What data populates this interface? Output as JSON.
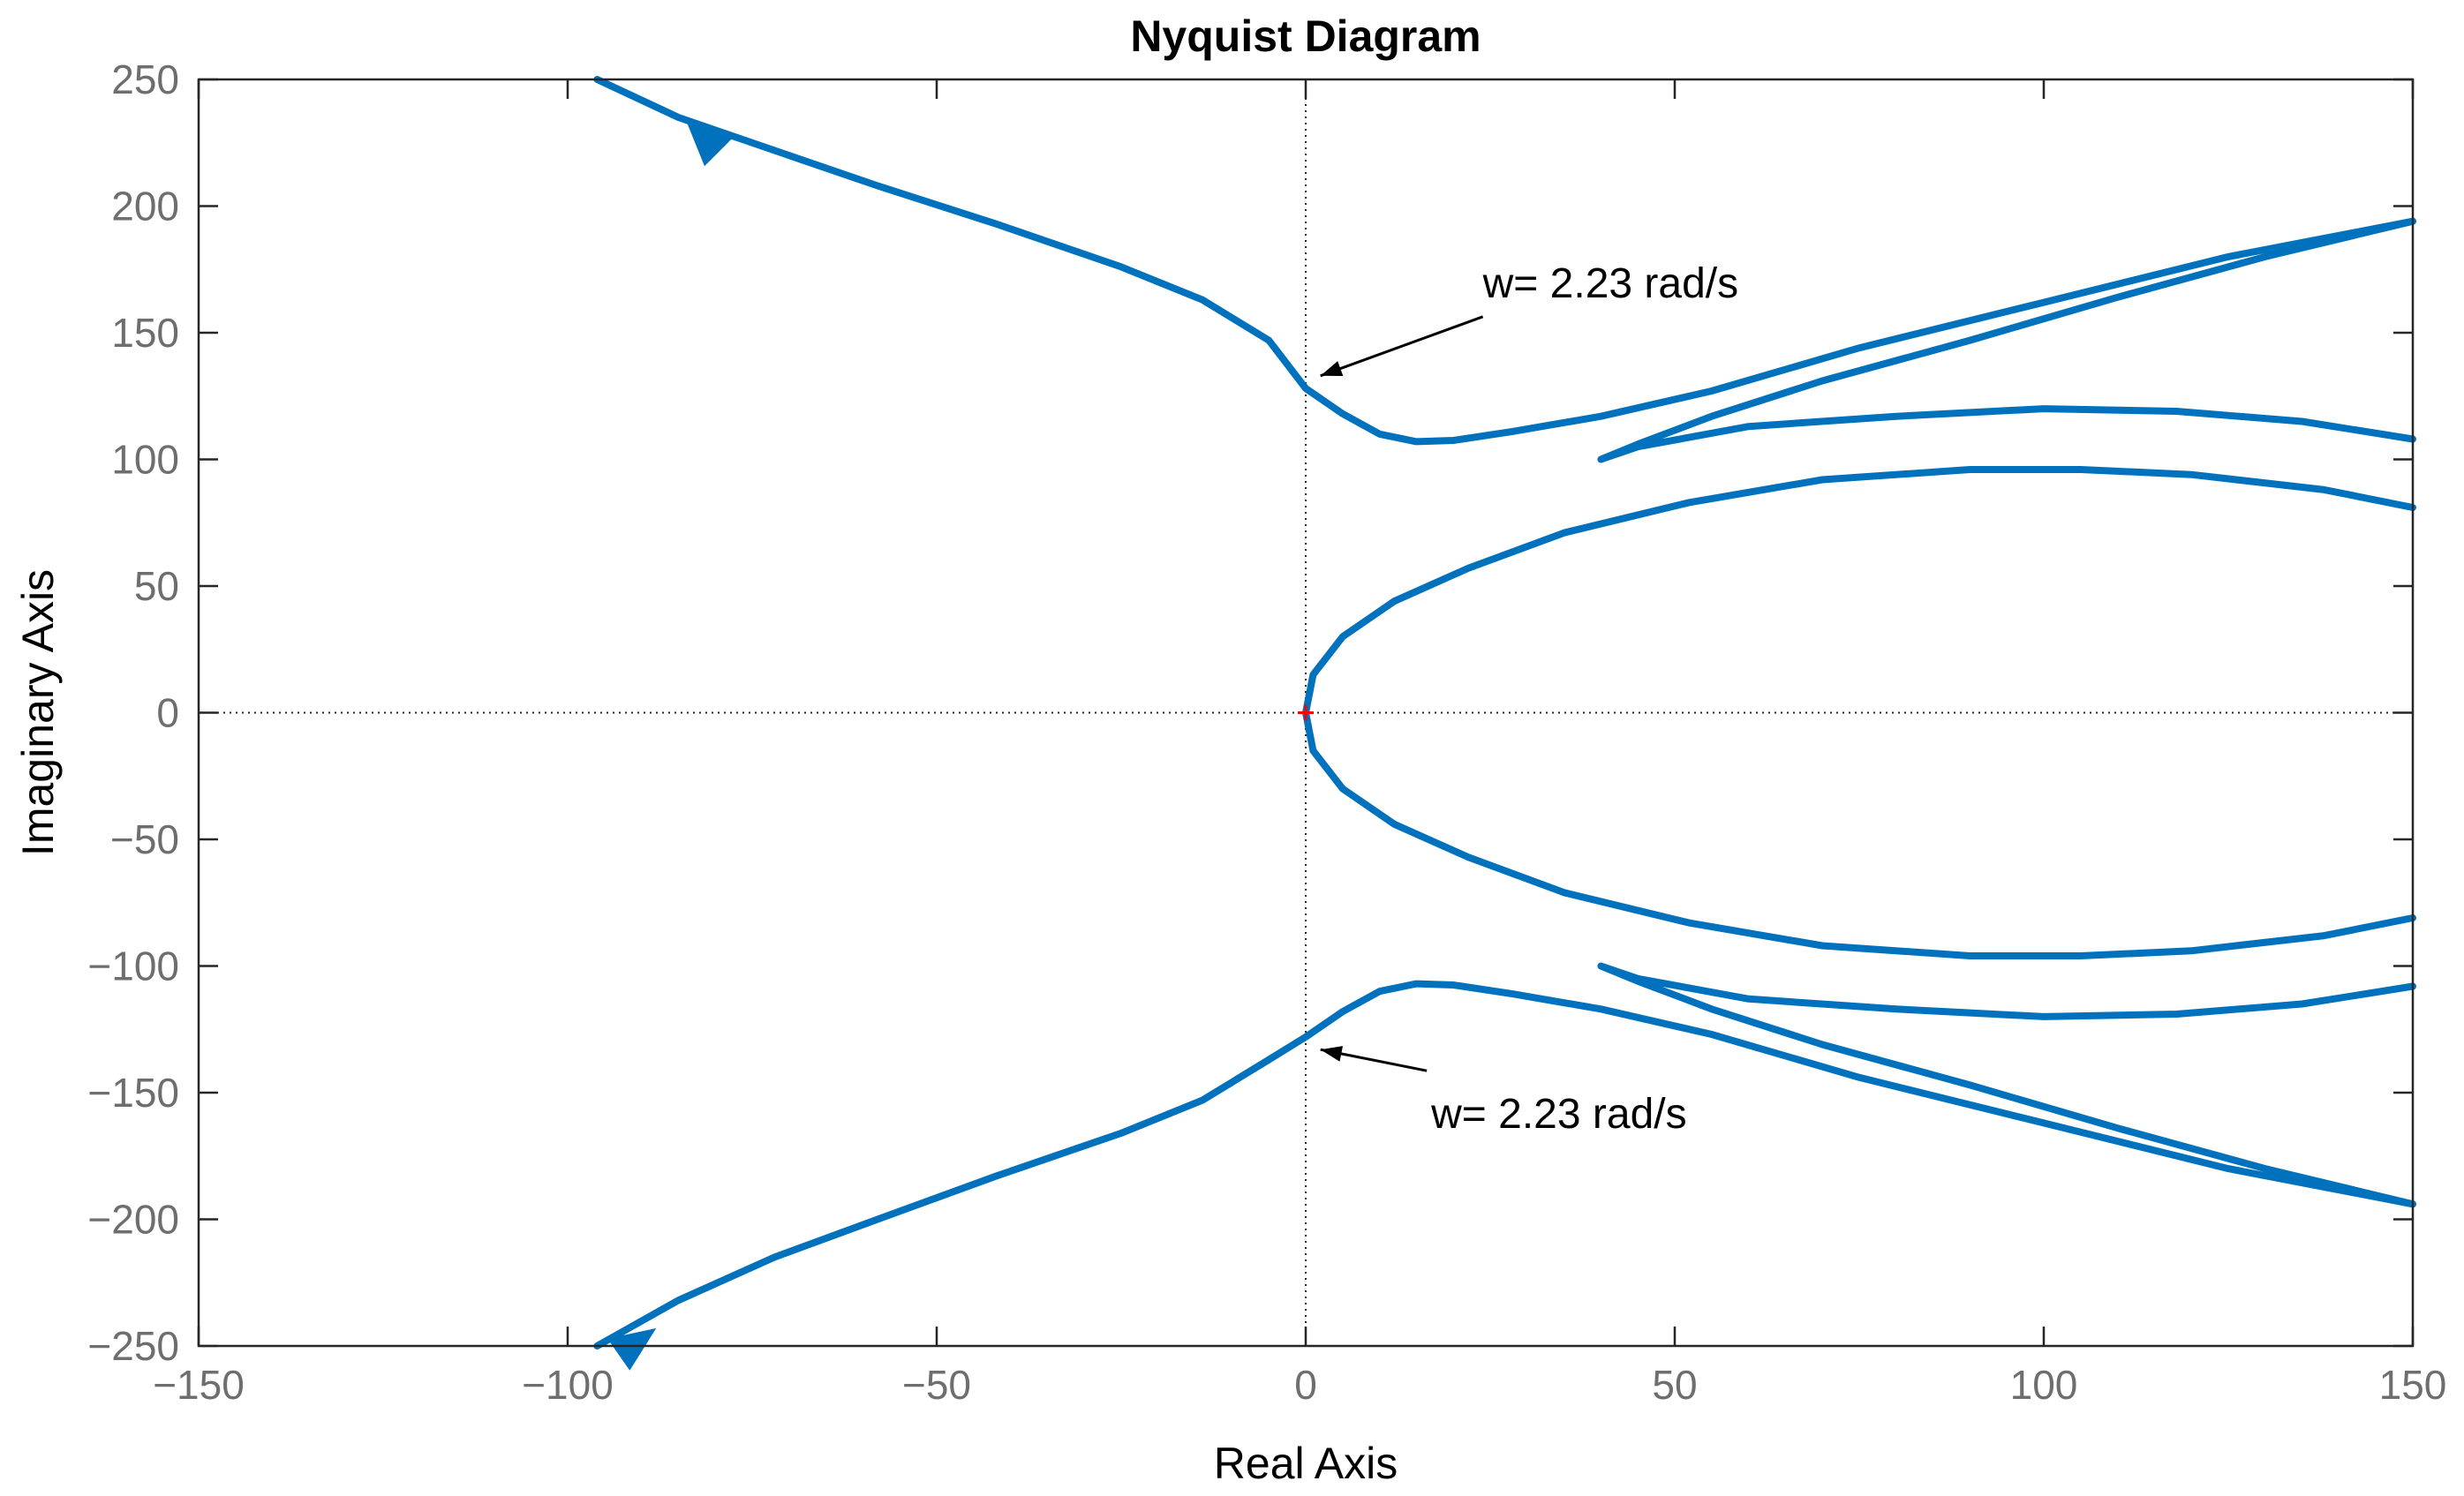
{
  "chart_data": {
    "type": "line",
    "title": "Nyquist Diagram",
    "xlabel": "Real Axis",
    "ylabel": "Imaginary Axis",
    "xlim": [
      -150,
      150
    ],
    "ylim": [
      -250,
      250
    ],
    "xticks": [
      -150,
      -100,
      -50,
      0,
      50,
      100,
      150
    ],
    "yticks": [
      -250,
      -200,
      -150,
      -100,
      -50,
      0,
      50,
      100,
      150,
      200,
      250
    ],
    "grid": false,
    "reference_lines": {
      "x0_dotted": true,
      "y0_dotted": true
    },
    "critical_point": {
      "x": 0,
      "y": 0,
      "color": "#ff0000"
    },
    "line_color": "#0072bd",
    "series": [
      {
        "points": [
          [
            -96,
            250
          ],
          [
            -85,
            235
          ],
          [
            -72,
            222
          ],
          [
            -58,
            208
          ],
          [
            -42,
            193
          ],
          [
            -25,
            176
          ],
          [
            -14,
            163
          ],
          [
            -5,
            147
          ],
          [
            0,
            128
          ],
          [
            5,
            118
          ],
          [
            10,
            110
          ],
          [
            15,
            107
          ],
          [
            20,
            107.5
          ],
          [
            28,
            111
          ],
          [
            40,
            117
          ],
          [
            55,
            127
          ],
          [
            75,
            144
          ],
          [
            100,
            162
          ],
          [
            125,
            180
          ],
          [
            150,
            194
          ]
        ]
      },
      {
        "points": [
          [
            150,
            194
          ],
          [
            130,
            180
          ],
          [
            110,
            164
          ],
          [
            90,
            147
          ],
          [
            70,
            131
          ],
          [
            55,
            117
          ],
          [
            45,
            106
          ],
          [
            40,
            100
          ],
          [
            45,
            105
          ],
          [
            60,
            113
          ],
          [
            80,
            117
          ],
          [
            100,
            120
          ],
          [
            118,
            119
          ],
          [
            135,
            115
          ],
          [
            150,
            108
          ]
        ]
      },
      {
        "points": [
          [
            150,
            81
          ],
          [
            138,
            88
          ],
          [
            120,
            94
          ],
          [
            105,
            96
          ],
          [
            90,
            96
          ],
          [
            70,
            92
          ],
          [
            52,
            83
          ],
          [
            35,
            71
          ],
          [
            22,
            57
          ],
          [
            12,
            44
          ],
          [
            5,
            30
          ],
          [
            1,
            15
          ],
          [
            0,
            0
          ],
          [
            1,
            -15
          ],
          [
            5,
            -30
          ],
          [
            12,
            -44
          ],
          [
            22,
            -57
          ],
          [
            35,
            -71
          ],
          [
            52,
            -83
          ],
          [
            70,
            -92
          ],
          [
            90,
            -96
          ],
          [
            105,
            -96
          ],
          [
            120,
            -94
          ],
          [
            138,
            -88
          ],
          [
            150,
            -81
          ]
        ]
      },
      {
        "points": [
          [
            150,
            -108
          ],
          [
            135,
            -115
          ],
          [
            118,
            -119
          ],
          [
            100,
            -120
          ],
          [
            80,
            -117
          ],
          [
            60,
            -113
          ],
          [
            45,
            -105
          ],
          [
            40,
            -100
          ],
          [
            45,
            -106
          ],
          [
            55,
            -117
          ],
          [
            70,
            -131
          ],
          [
            90,
            -147
          ],
          [
            110,
            -164
          ],
          [
            130,
            -180
          ],
          [
            150,
            -194
          ]
        ]
      },
      {
        "points": [
          [
            150,
            -194
          ],
          [
            125,
            -180
          ],
          [
            100,
            -162
          ],
          [
            75,
            -144
          ],
          [
            55,
            -127
          ],
          [
            40,
            -117
          ],
          [
            28,
            -111
          ],
          [
            20,
            -107.5
          ],
          [
            15,
            -107
          ],
          [
            10,
            -110
          ],
          [
            5,
            -118
          ],
          [
            0,
            -128
          ],
          [
            -5,
            -137
          ],
          [
            -14,
            -153
          ],
          [
            -25,
            -166
          ],
          [
            -42,
            -183
          ],
          [
            -58,
            -200
          ],
          [
            -72,
            -215
          ],
          [
            -85,
            -232
          ],
          [
            -96,
            -250
          ]
        ]
      }
    ],
    "arrows": [
      {
        "x": -84,
        "y": 234,
        "dx": -1,
        "dy": 1
      },
      {
        "x": -88,
        "y": -243,
        "dx": 1,
        "dy": 0.7
      }
    ],
    "annotations": [
      {
        "text": "w= 2.23 rad/s",
        "x": 24,
        "y": 164,
        "arrow_to": [
          2,
          133
        ]
      },
      {
        "text": "w= 2.23 rad/s",
        "x": 17,
        "y": -164,
        "arrow_to": [
          2,
          -133
        ]
      }
    ]
  }
}
